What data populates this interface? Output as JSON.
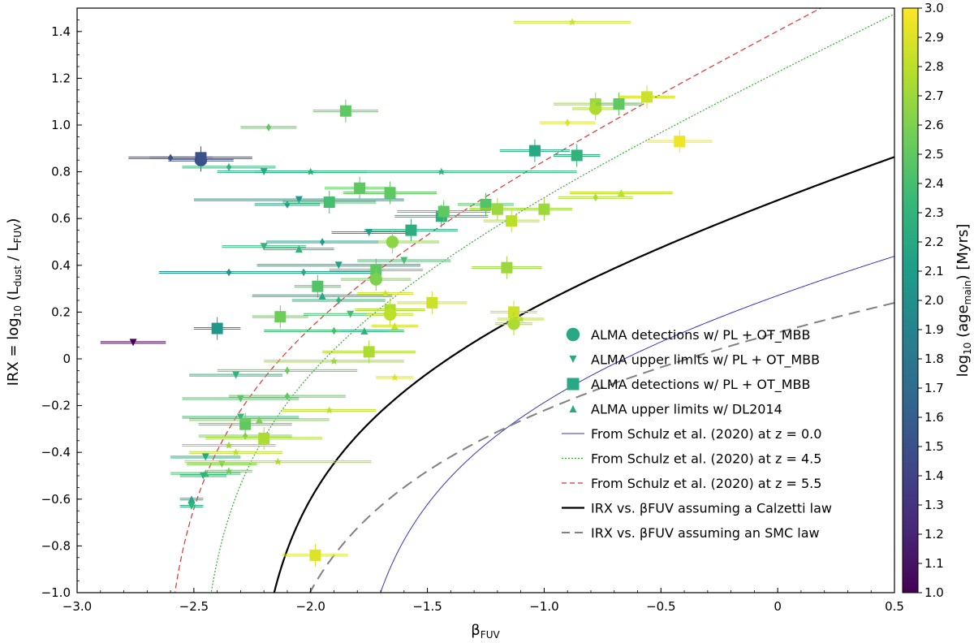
{
  "chart_data": {
    "type": "scatter",
    "xlabel": "βFUV",
    "ylabel": "IRX = log10 (Ldust / LFUV)",
    "xlim": [
      -3.0,
      0.5
    ],
    "ylim": [
      -1.0,
      1.5
    ],
    "x_ticks": [
      "−3.0",
      "−2.5",
      "−2.0",
      "−1.5",
      "−1.0",
      "−0.5",
      "0",
      "0.5"
    ],
    "y_ticks": [
      "−1.0",
      "−0.8",
      "−0.6",
      "−0.4",
      "−0.2",
      "0",
      "0.2",
      "0.4",
      "0.6",
      "0.8",
      "1.0",
      "1.2",
      "1.4"
    ],
    "colorbar": {
      "label": "log10 (agemain) [Myrs]",
      "range": [
        1.0,
        3.0
      ],
      "ticks": [
        "1.0",
        "1.1",
        "1.2",
        "1.3",
        "1.4",
        "1.5",
        "1.6",
        "1.7",
        "1.8",
        "1.9",
        "2.0",
        "2.1",
        "2.2",
        "2.3",
        "2.4",
        "2.5",
        "2.6",
        "2.7",
        "2.8",
        "2.9",
        "3.0"
      ],
      "colors": [
        "#440154",
        "#482878",
        "#3e4989",
        "#31688e",
        "#26828e",
        "#1f9e89",
        "#35b779",
        "#6ece58",
        "#b5de2b",
        "#fde725"
      ]
    },
    "legend_position": "lower-right",
    "legend": [
      {
        "label": "ALMA detections w/ PL + OT_MBB",
        "marker": "circle"
      },
      {
        "label": "ALMA upper limits w/ PL + OT_MBB",
        "marker": "triangle-down"
      },
      {
        "label": "ALMA detections w/ PL + OT_MBB",
        "marker": "square"
      },
      {
        "label": "ALMA upper limits w/ DL2014",
        "marker": "triangle-up"
      },
      {
        "label": "From Schulz et al. (2020) at z = 0.0",
        "style": "thin-solid",
        "color": "#3333cc"
      },
      {
        "label": "From Schulz et al. (2020) at z = 4.5",
        "style": "dotted",
        "color": "#33aa33"
      },
      {
        "label": "From Schulz et al. (2020) at z = 5.5",
        "style": "dashed",
        "color": "#dd3333"
      },
      {
        "label": "IRX vs. βFUV assuming a Calzetti law",
        "style": "thick-solid",
        "color": "#000000"
      },
      {
        "label": "IRX vs. βFUV assuming an SMC law",
        "style": "long-dashed",
        "color": "#808080"
      }
    ],
    "curves": [
      {
        "name": "schulz_z0",
        "color": "#3333cc",
        "beta0": -1.86,
        "k": 0.55
      },
      {
        "name": "schulz_z45",
        "color": "#33aa33",
        "beta0": -2.5,
        "k": 1.18
      },
      {
        "name": "schulz_z55",
        "color": "#dd3333",
        "beta0": -2.65,
        "k": 1.27
      },
      {
        "name": "calzetti",
        "color": "#000000",
        "beta0": -2.27,
        "k": 0.77
      },
      {
        "name": "smc",
        "color": "#808080",
        "beta0": -2.25,
        "k": 0.355
      }
    ],
    "points": [
      {
        "x": -2.76,
        "y": 0.07,
        "age": 1.0,
        "m": "v",
        "xe": 0.14
      },
      {
        "x": -2.47,
        "y": 0.85,
        "age": 1.45,
        "m": "o",
        "xe": 0.14
      },
      {
        "x": -2.47,
        "y": 0.86,
        "age": 1.5,
        "m": "s",
        "xe": 0.22
      },
      {
        "x": -2.6,
        "y": 0.86,
        "age": 1.5,
        "m": "d",
        "xe": 0.18
      },
      {
        "x": -2.4,
        "y": 0.13,
        "age": 2.05,
        "m": "s",
        "xe": 0.1
      },
      {
        "x": -2.35,
        "y": 0.82,
        "age": 2.3,
        "m": "d",
        "xe": 0.2
      },
      {
        "x": -2.18,
        "y": 0.99,
        "age": 2.5,
        "m": "d",
        "xe": 0.12
      },
      {
        "x": -1.85,
        "y": 1.06,
        "age": 2.5,
        "m": "s",
        "xe": 0.14
      },
      {
        "x": -2.2,
        "y": 0.8,
        "age": 2.2,
        "m": "v",
        "xe": 0.2
      },
      {
        "x": -2.0,
        "y": 0.8,
        "age": 2.2,
        "m": "*",
        "xe": 0.24
      },
      {
        "x": -2.05,
        "y": 0.68,
        "age": 2.05,
        "m": "v",
        "xe": 0.45
      },
      {
        "x": -2.1,
        "y": 0.66,
        "age": 2.1,
        "m": "d",
        "xe": 0.14
      },
      {
        "x": -1.92,
        "y": 0.67,
        "age": 2.4,
        "m": "s",
        "xe": 0.2
      },
      {
        "x": -1.79,
        "y": 0.73,
        "age": 2.5,
        "m": "s",
        "xe": 0.15
      },
      {
        "x": -1.66,
        "y": 0.71,
        "age": 2.5,
        "m": "s",
        "xe": 0.2
      },
      {
        "x": -1.57,
        "y": 0.55,
        "age": 2.25,
        "m": "s",
        "xe": 0.2
      },
      {
        "x": -1.75,
        "y": 0.54,
        "age": 2.1,
        "m": "v",
        "xe": 0.16
      },
      {
        "x": -1.65,
        "y": 0.5,
        "age": 2.65,
        "m": "o",
        "xe": 0.2
      },
      {
        "x": -1.44,
        "y": 0.61,
        "age": 2.25,
        "m": "s",
        "xe": 0.2
      },
      {
        "x": -1.43,
        "y": 0.63,
        "age": 2.5,
        "m": "s",
        "xe": 0.2
      },
      {
        "x": -1.44,
        "y": 0.8,
        "age": 2.3,
        "m": "*",
        "xe": 0.58
      },
      {
        "x": -1.25,
        "y": 0.66,
        "age": 2.45,
        "m": "s",
        "xe": 0.12
      },
      {
        "x": -1.2,
        "y": 0.64,
        "age": 2.7,
        "m": "s",
        "xe": 0.12
      },
      {
        "x": -1.14,
        "y": 0.59,
        "age": 2.8,
        "m": "s",
        "xe": 0.12
      },
      {
        "x": -1.0,
        "y": 0.64,
        "age": 2.7,
        "m": "s",
        "xe": 0.12
      },
      {
        "x": -1.04,
        "y": 0.89,
        "age": 2.2,
        "m": "s",
        "xe": 0.15
      },
      {
        "x": -0.86,
        "y": 0.87,
        "age": 2.3,
        "m": "s",
        "xe": 0.1
      },
      {
        "x": -0.78,
        "y": 1.09,
        "age": 2.7,
        "m": "s",
        "xe": 0.18
      },
      {
        "x": -0.78,
        "y": 1.07,
        "age": 2.75,
        "m": "o",
        "xe": 0.1
      },
      {
        "x": -0.68,
        "y": 1.09,
        "age": 2.5,
        "m": "s",
        "xe": 0.1
      },
      {
        "x": -0.56,
        "y": 1.12,
        "age": 2.85,
        "m": "s",
        "xe": 0.12
      },
      {
        "x": -0.88,
        "y": 1.44,
        "age": 2.85,
        "m": "*",
        "xe": 0.25
      },
      {
        "x": -0.9,
        "y": 1.01,
        "age": 2.9,
        "m": "d",
        "xe": 0.12
      },
      {
        "x": -0.42,
        "y": 0.93,
        "age": 2.95,
        "m": "s",
        "xe": 0.14
      },
      {
        "x": -0.78,
        "y": 0.69,
        "age": 2.75,
        "m": "d",
        "xe": 0.16
      },
      {
        "x": -0.67,
        "y": 0.71,
        "age": 2.8,
        "m": "^",
        "xe": 0.22
      },
      {
        "x": -2.2,
        "y": 0.48,
        "age": 2.3,
        "m": "v",
        "xe": 0.18
      },
      {
        "x": -2.05,
        "y": 0.47,
        "age": 2.3,
        "m": "^",
        "xe": 0.15
      },
      {
        "x": -1.95,
        "y": 0.5,
        "age": 2.1,
        "m": "d",
        "xe": 0.24
      },
      {
        "x": -2.35,
        "y": 0.37,
        "age": 2.0,
        "m": "d",
        "xe": 0.3
      },
      {
        "x": -2.03,
        "y": 0.37,
        "age": 2.2,
        "m": "d",
        "xe": 0.3
      },
      {
        "x": -1.88,
        "y": 0.4,
        "age": 2.15,
        "m": "v",
        "xe": 0.35
      },
      {
        "x": -1.72,
        "y": 0.38,
        "age": 2.5,
        "m": "s",
        "xe": 0.2
      },
      {
        "x": -1.72,
        "y": 0.34,
        "age": 2.6,
        "m": "o",
        "xe": 0.15
      },
      {
        "x": -1.6,
        "y": 0.42,
        "age": 2.4,
        "m": "v",
        "xe": 0.2
      },
      {
        "x": -1.97,
        "y": 0.31,
        "age": 2.45,
        "m": "s",
        "xe": 0.1
      },
      {
        "x": -2.13,
        "y": 0.18,
        "age": 2.55,
        "m": "s",
        "xe": 0.12
      },
      {
        "x": -1.88,
        "y": 0.25,
        "age": 2.3,
        "m": "d",
        "xe": 0.2
      },
      {
        "x": -1.95,
        "y": 0.27,
        "age": 2.2,
        "m": "^",
        "xe": 0.3
      },
      {
        "x": -1.83,
        "y": 0.19,
        "age": 2.4,
        "m": "v",
        "xe": 0.2
      },
      {
        "x": -1.66,
        "y": 0.21,
        "age": 2.75,
        "m": "s",
        "xe": 0.15
      },
      {
        "x": -1.66,
        "y": 0.19,
        "age": 2.8,
        "m": "o",
        "xe": 0.1
      },
      {
        "x": -1.48,
        "y": 0.24,
        "age": 2.85,
        "m": "s",
        "xe": 0.15
      },
      {
        "x": -1.68,
        "y": 0.28,
        "age": 2.85,
        "m": "*",
        "xe": 0.12
      },
      {
        "x": -1.9,
        "y": 0.12,
        "age": 2.4,
        "m": "d",
        "xe": 0.3
      },
      {
        "x": -1.77,
        "y": 0.12,
        "age": 2.3,
        "m": "^",
        "xe": 0.1
      },
      {
        "x": -1.64,
        "y": 0.14,
        "age": 2.85,
        "m": "^",
        "xe": 0.1
      },
      {
        "x": -1.16,
        "y": 0.39,
        "age": 2.7,
        "m": "s",
        "xe": 0.15
      },
      {
        "x": -1.13,
        "y": 0.2,
        "age": 2.85,
        "m": "s",
        "xe": 0.1
      },
      {
        "x": -1.13,
        "y": 0.15,
        "age": 2.75,
        "m": "o",
        "xe": 0.08
      },
      {
        "x": -1.1,
        "y": 0.17,
        "age": 2.8,
        "m": "*",
        "xe": 0.1
      },
      {
        "x": -1.75,
        "y": 0.03,
        "age": 2.75,
        "m": "s",
        "xe": 0.2
      },
      {
        "x": -1.9,
        "y": -0.01,
        "age": 2.7,
        "m": "*",
        "xe": 0.3
      },
      {
        "x": -2.1,
        "y": -0.05,
        "age": 2.55,
        "m": "d",
        "xe": 0.3
      },
      {
        "x": -2.32,
        "y": -0.07,
        "age": 2.3,
        "m": "v",
        "xe": 0.2
      },
      {
        "x": -2.3,
        "y": -0.17,
        "age": 2.45,
        "m": "v",
        "xe": 0.25
      },
      {
        "x": -2.1,
        "y": -0.16,
        "age": 2.5,
        "m": "d",
        "xe": 0.25
      },
      {
        "x": -1.64,
        "y": -0.08,
        "age": 2.9,
        "m": "*",
        "xe": 0.08
      },
      {
        "x": -1.92,
        "y": -0.22,
        "age": 2.8,
        "m": "*",
        "xe": 0.2
      },
      {
        "x": -2.3,
        "y": -0.25,
        "age": 2.35,
        "m": "v",
        "xe": 0.25
      },
      {
        "x": -2.28,
        "y": -0.28,
        "age": 2.5,
        "m": "s",
        "xe": 0.2
      },
      {
        "x": -2.22,
        "y": -0.26,
        "age": 2.6,
        "m": "^",
        "xe": 0.3
      },
      {
        "x": -2.28,
        "y": -0.33,
        "age": 2.6,
        "m": "d",
        "xe": 0.2
      },
      {
        "x": -2.2,
        "y": -0.34,
        "age": 2.75,
        "m": "s",
        "xe": 0.25
      },
      {
        "x": -2.35,
        "y": -0.37,
        "age": 2.7,
        "m": "*",
        "xe": 0.2
      },
      {
        "x": -2.32,
        "y": -0.4,
        "age": 2.8,
        "m": "*",
        "xe": 0.2
      },
      {
        "x": -2.45,
        "y": -0.42,
        "age": 2.2,
        "m": "v",
        "xe": 0.15
      },
      {
        "x": -2.38,
        "y": -0.45,
        "age": 2.6,
        "m": "v",
        "xe": 0.15
      },
      {
        "x": -2.35,
        "y": -0.48,
        "age": 2.55,
        "m": "*",
        "xe": 0.1
      },
      {
        "x": -2.45,
        "y": -0.49,
        "age": 2.4,
        "m": "^",
        "xe": 0.15
      },
      {
        "x": -2.46,
        "y": -0.5,
        "age": 2.3,
        "m": "v",
        "xe": 0.1
      },
      {
        "x": -2.14,
        "y": -0.44,
        "age": 2.75,
        "m": "*",
        "xe": 0.4
      },
      {
        "x": -2.51,
        "y": -0.6,
        "age": 2.2,
        "m": "^",
        "xe": 0.05
      },
      {
        "x": -2.51,
        "y": -0.63,
        "age": 2.3,
        "m": "v",
        "xe": 0.05
      },
      {
        "x": -1.98,
        "y": -0.84,
        "age": 2.9,
        "m": "s",
        "xe": 0.14
      }
    ]
  }
}
